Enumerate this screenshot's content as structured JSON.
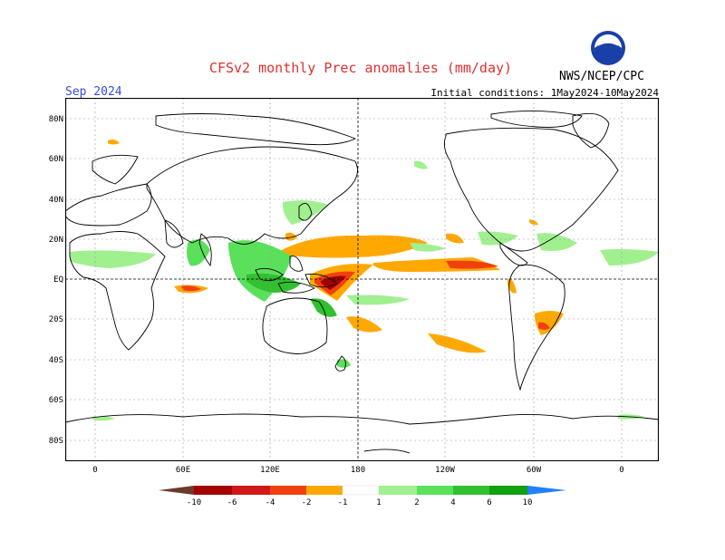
{
  "title": "CFSv2 monthly Prec anomalies (mm/day)",
  "valid_month": "Sep 2024",
  "initial_conditions": "Initial conditions: 1May2024-10May2024",
  "agency": "NWS/NCEP/CPC",
  "logo_text": "NOAA",
  "lat_labels": [
    "80N",
    "60N",
    "40N",
    "20N",
    "EQ",
    "20S",
    "40S",
    "60S",
    "80S"
  ],
  "lon_labels": [
    "0",
    "60E",
    "120E",
    "180",
    "120W",
    "60W",
    "0"
  ],
  "colorbar": {
    "ticks": [
      "-10",
      "-6",
      "-4",
      "-2",
      "-1",
      "1",
      "2",
      "4",
      "6",
      "10"
    ],
    "colors": [
      "#6b3a2a",
      "#a30000",
      "#d01818",
      "#f04010",
      "#ff7a00",
      "#ffa800",
      "#ffffff",
      "#a0f090",
      "#5ae05a",
      "#30c030",
      "#10a010",
      "#2080ff"
    ]
  }
}
